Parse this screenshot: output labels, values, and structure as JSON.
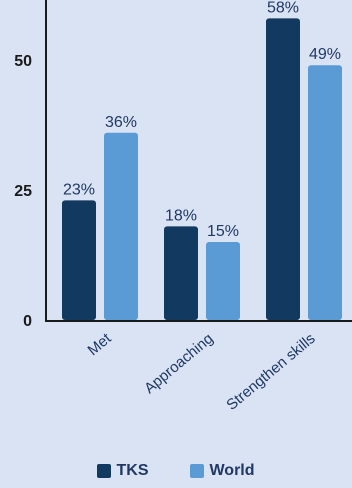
{
  "chart_data": {
    "type": "bar",
    "categories": [
      "Met",
      "Approaching",
      "Strengthen skills"
    ],
    "series": [
      {
        "name": "TKS",
        "values": [
          23,
          18,
          58
        ],
        "labels": [
          "23%",
          "18%",
          "58%"
        ],
        "color": "#12395f"
      },
      {
        "name": "World",
        "values": [
          36,
          15,
          49
        ],
        "labels": [
          "36%",
          "15%",
          "49%"
        ],
        "color": "#5b9bd5"
      }
    ],
    "yticks": [
      "0",
      "25",
      "50"
    ],
    "ylim": [
      0,
      60
    ],
    "grid": false,
    "legend": "bottom-center"
  }
}
